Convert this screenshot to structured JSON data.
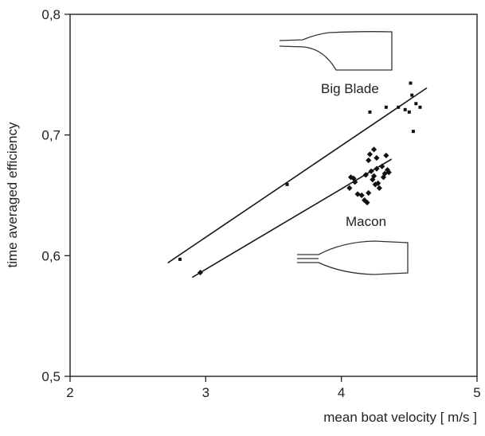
{
  "chart_data": {
    "type": "scatter",
    "title": "",
    "xlabel": "mean boat velocity [ m/s ]",
    "ylabel": "time averaged efficiency",
    "xlim": [
      2,
      5
    ],
    "ylim": [
      0.5,
      0.8
    ],
    "x_ticks": [
      "2",
      "3",
      "4",
      "5"
    ],
    "y_ticks": [
      "0,5",
      "0,6",
      "0,7",
      "0,8"
    ],
    "grid": false,
    "legend": "none",
    "annotations": [
      "Big Blade",
      "Macon"
    ],
    "series": [
      {
        "name": "Big Blade",
        "marker": "square",
        "color": "#111111",
        "points": [
          [
            2.81,
            0.597
          ],
          [
            3.6,
            0.659
          ],
          [
            4.21,
            0.719
          ],
          [
            4.33,
            0.723
          ],
          [
            4.42,
            0.723
          ],
          [
            4.47,
            0.721
          ],
          [
            4.5,
            0.719
          ],
          [
            4.53,
            0.703
          ],
          [
            4.52,
            0.733
          ],
          [
            4.51,
            0.743
          ],
          [
            4.55,
            0.726
          ],
          [
            4.58,
            0.723
          ]
        ],
        "fit_line": [
          [
            2.72,
            0.594
          ],
          [
            4.63,
            0.739
          ]
        ]
      },
      {
        "name": "Macon",
        "marker": "diamond",
        "color": "#111111",
        "points": [
          [
            2.96,
            0.586
          ],
          [
            4.06,
            0.656
          ],
          [
            4.07,
            0.665
          ],
          [
            4.09,
            0.664
          ],
          [
            4.1,
            0.661
          ],
          [
            4.12,
            0.651
          ],
          [
            4.15,
            0.65
          ],
          [
            4.17,
            0.646
          ],
          [
            4.18,
            0.667
          ],
          [
            4.19,
            0.644
          ],
          [
            4.2,
            0.652
          ],
          [
            4.2,
            0.679
          ],
          [
            4.21,
            0.684
          ],
          [
            4.22,
            0.67
          ],
          [
            4.23,
            0.663
          ],
          [
            4.24,
            0.688
          ],
          [
            4.24,
            0.666
          ],
          [
            4.25,
            0.659
          ],
          [
            4.26,
            0.681
          ],
          [
            4.26,
            0.672
          ],
          [
            4.27,
            0.66
          ],
          [
            4.28,
            0.656
          ],
          [
            4.3,
            0.674
          ],
          [
            4.31,
            0.665
          ],
          [
            4.32,
            0.668
          ],
          [
            4.33,
            0.683
          ],
          [
            4.34,
            0.671
          ],
          [
            4.35,
            0.669
          ]
        ],
        "fit_line": [
          [
            2.9,
            0.582
          ],
          [
            4.37,
            0.68
          ]
        ]
      }
    ]
  }
}
